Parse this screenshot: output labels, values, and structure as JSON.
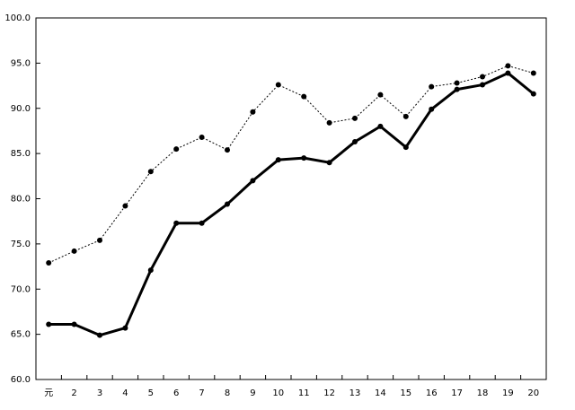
{
  "chart_data": {
    "type": "line",
    "categories": [
      "元",
      "2",
      "3",
      "4",
      "5",
      "6",
      "7",
      "8",
      "9",
      "10",
      "11",
      "12",
      "13",
      "14",
      "15",
      "16",
      "17",
      "18",
      "19",
      "20"
    ],
    "series": [
      {
        "color": "#000000",
        "line_style": "dotted",
        "values": [
          72.9,
          74.2,
          75.4,
          79.2,
          83.0,
          85.5,
          86.8,
          85.4,
          89.6,
          92.6,
          91.3,
          88.4,
          88.9,
          91.5,
          89.1,
          92.4,
          92.8,
          93.5,
          94.7,
          93.9
        ]
      },
      {
        "color": "#000000",
        "line_style": "solid",
        "values": [
          66.1,
          66.1,
          64.9,
          65.7,
          72.1,
          77.3,
          77.3,
          79.4,
          82.0,
          84.3,
          84.5,
          84.0,
          86.3,
          88.0,
          85.7,
          89.9,
          92.1,
          92.6,
          93.9,
          91.6
        ]
      }
    ],
    "ylim": [
      60,
      100
    ],
    "yticks": [
      {
        "value": 60,
        "label": "60.0"
      },
      {
        "value": 65,
        "label": "65.0"
      },
      {
        "value": 70,
        "label": "70.0"
      },
      {
        "value": 75,
        "label": "75.0"
      },
      {
        "value": 80,
        "label": "80.0"
      },
      {
        "value": 85,
        "label": "85.0"
      },
      {
        "value": 90,
        "label": "90.0"
      },
      {
        "value": 95,
        "label": "95.0"
      },
      {
        "value": 100,
        "label": "100.0"
      }
    ],
    "grid": false
  }
}
